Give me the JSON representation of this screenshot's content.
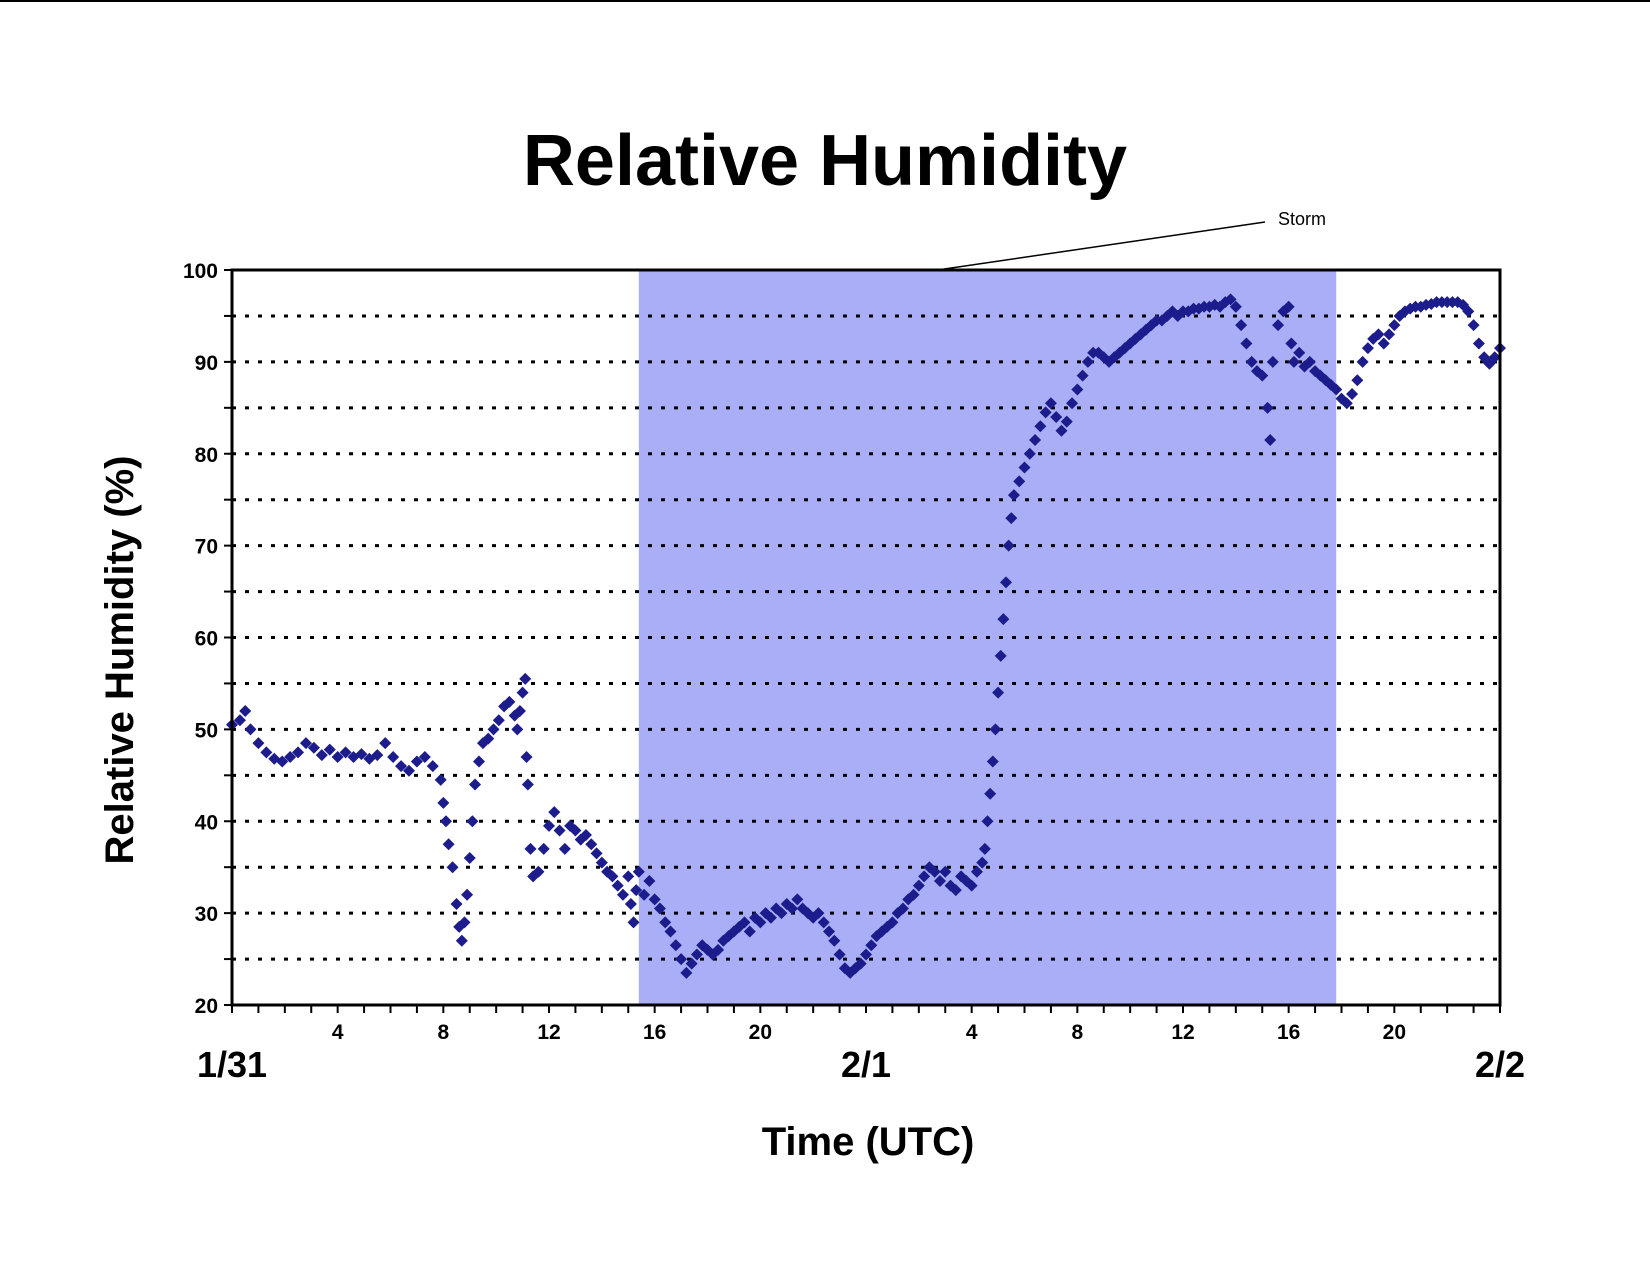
{
  "chart_data": {
    "type": "scatter",
    "title": "Relative Humidity",
    "xlabel": "Time (UTC)",
    "ylabel": "Relative Humidity (%)",
    "ylim": [
      20,
      100
    ],
    "yticks": [
      "20",
      "30",
      "40",
      "50",
      "60",
      "70",
      "80",
      "90",
      "100"
    ],
    "x_unit": "hours after 1/31 00 UTC",
    "xlim": [
      0,
      48
    ],
    "hour_ticks": [
      {
        "hour": 4,
        "label": "4"
      },
      {
        "hour": 8,
        "label": "8"
      },
      {
        "hour": 12,
        "label": "12"
      },
      {
        "hour": 16,
        "label": "16"
      },
      {
        "hour": 20,
        "label": "20"
      },
      {
        "hour": 28,
        "label": "4"
      },
      {
        "hour": 32,
        "label": "8"
      },
      {
        "hour": 36,
        "label": "12"
      },
      {
        "hour": 40,
        "label": "16"
      },
      {
        "hour": 44,
        "label": "20"
      }
    ],
    "date_labels": [
      {
        "hour": 0,
        "label": "1/31"
      },
      {
        "hour": 24,
        "label": "2/1"
      },
      {
        "hour": 48,
        "label": "2/2"
      }
    ],
    "grid": "dotted horizontal every 5",
    "shaded_region": {
      "label": "Storm",
      "x_start": 15.4,
      "x_end": 41.8,
      "color": "#a9aef7"
    },
    "marker_color": "#1c1c8c",
    "series": [
      {
        "marker": "diamond",
        "points": [
          [
            0.0,
            50.5
          ],
          [
            0.3,
            51.0
          ],
          [
            0.5,
            52.0
          ],
          [
            0.7,
            50.0
          ],
          [
            1.0,
            48.5
          ],
          [
            1.3,
            47.5
          ],
          [
            1.6,
            46.8
          ],
          [
            1.9,
            46.5
          ],
          [
            2.2,
            47.0
          ],
          [
            2.5,
            47.5
          ],
          [
            2.8,
            48.5
          ],
          [
            3.1,
            48.0
          ],
          [
            3.4,
            47.2
          ],
          [
            3.7,
            47.8
          ],
          [
            4.0,
            47.0
          ],
          [
            4.3,
            47.5
          ],
          [
            4.6,
            47.0
          ],
          [
            4.9,
            47.3
          ],
          [
            5.2,
            46.8
          ],
          [
            5.5,
            47.2
          ],
          [
            5.8,
            48.5
          ],
          [
            6.1,
            47.0
          ],
          [
            6.4,
            46.0
          ],
          [
            6.7,
            45.5
          ],
          [
            7.0,
            46.5
          ],
          [
            7.3,
            47.0
          ],
          [
            7.6,
            46.0
          ],
          [
            7.9,
            44.5
          ],
          [
            8.0,
            42.0
          ],
          [
            8.1,
            40.0
          ],
          [
            8.2,
            37.5
          ],
          [
            8.35,
            35.0
          ],
          [
            8.5,
            31.0
          ],
          [
            8.6,
            28.5
          ],
          [
            8.7,
            27.0
          ],
          [
            8.8,
            29.0
          ],
          [
            8.9,
            32.0
          ],
          [
            9.0,
            36.0
          ],
          [
            9.1,
            40.0
          ],
          [
            9.2,
            44.0
          ],
          [
            9.35,
            46.5
          ],
          [
            9.5,
            48.5
          ],
          [
            9.7,
            49.0
          ],
          [
            9.9,
            50.0
          ],
          [
            10.1,
            51.0
          ],
          [
            10.3,
            52.5
          ],
          [
            10.5,
            53.0
          ],
          [
            10.7,
            51.5
          ],
          [
            10.8,
            50.0
          ],
          [
            10.9,
            52.0
          ],
          [
            11.0,
            54.0
          ],
          [
            11.1,
            55.5
          ],
          [
            11.15,
            47.0
          ],
          [
            11.2,
            44.0
          ],
          [
            11.3,
            37.0
          ],
          [
            11.4,
            34.0
          ],
          [
            11.6,
            34.5
          ],
          [
            11.8,
            37.0
          ],
          [
            12.0,
            39.5
          ],
          [
            12.2,
            41.0
          ],
          [
            12.4,
            39.0
          ],
          [
            12.6,
            37.0
          ],
          [
            12.8,
            39.5
          ],
          [
            13.0,
            39.0
          ],
          [
            13.2,
            38.0
          ],
          [
            13.4,
            38.5
          ],
          [
            13.6,
            37.5
          ],
          [
            13.8,
            36.5
          ],
          [
            14.0,
            35.5
          ],
          [
            14.2,
            34.5
          ],
          [
            14.4,
            34.0
          ],
          [
            14.6,
            33.0
          ],
          [
            14.8,
            32.0
          ],
          [
            15.0,
            34.0
          ],
          [
            15.1,
            31.0
          ],
          [
            15.2,
            29.0
          ],
          [
            15.3,
            32.5
          ],
          [
            15.4,
            34.5
          ],
          [
            15.6,
            32.0
          ],
          [
            15.8,
            33.5
          ],
          [
            16.0,
            31.5
          ],
          [
            16.2,
            30.5
          ],
          [
            16.4,
            29.0
          ],
          [
            16.6,
            28.0
          ],
          [
            16.8,
            26.5
          ],
          [
            17.0,
            25.0
          ],
          [
            17.2,
            23.5
          ],
          [
            17.4,
            24.5
          ],
          [
            17.6,
            25.5
          ],
          [
            17.8,
            26.5
          ],
          [
            18.0,
            26.0
          ],
          [
            18.2,
            25.5
          ],
          [
            18.4,
            26.0
          ],
          [
            18.6,
            27.0
          ],
          [
            18.8,
            27.5
          ],
          [
            19.0,
            28.0
          ],
          [
            19.2,
            28.5
          ],
          [
            19.4,
            29.0
          ],
          [
            19.6,
            28.0
          ],
          [
            19.8,
            29.5
          ],
          [
            20.0,
            29.0
          ],
          [
            20.2,
            30.0
          ],
          [
            20.4,
            29.5
          ],
          [
            20.6,
            30.5
          ],
          [
            20.8,
            30.0
          ],
          [
            21.0,
            31.0
          ],
          [
            21.2,
            30.5
          ],
          [
            21.4,
            31.5
          ],
          [
            21.6,
            30.5
          ],
          [
            21.8,
            30.0
          ],
          [
            22.0,
            29.5
          ],
          [
            22.2,
            30.0
          ],
          [
            22.4,
            29.0
          ],
          [
            22.6,
            28.0
          ],
          [
            22.8,
            27.0
          ],
          [
            23.0,
            25.5
          ],
          [
            23.2,
            24.0
          ],
          [
            23.4,
            23.5
          ],
          [
            23.6,
            24.0
          ],
          [
            23.8,
            24.5
          ],
          [
            24.0,
            25.5
          ],
          [
            24.2,
            26.5
          ],
          [
            24.4,
            27.5
          ],
          [
            24.6,
            28.0
          ],
          [
            24.8,
            28.5
          ],
          [
            25.0,
            29.0
          ],
          [
            25.2,
            30.0
          ],
          [
            25.4,
            30.5
          ],
          [
            25.6,
            31.5
          ],
          [
            25.8,
            32.0
          ],
          [
            26.0,
            33.0
          ],
          [
            26.2,
            34.0
          ],
          [
            26.4,
            35.0
          ],
          [
            26.6,
            34.5
          ],
          [
            26.8,
            33.5
          ],
          [
            27.0,
            34.5
          ],
          [
            27.2,
            33.0
          ],
          [
            27.4,
            32.5
          ],
          [
            27.6,
            34.0
          ],
          [
            27.8,
            33.5
          ],
          [
            28.0,
            33.0
          ],
          [
            28.2,
            34.5
          ],
          [
            28.4,
            35.5
          ],
          [
            28.5,
            37.0
          ],
          [
            28.6,
            40.0
          ],
          [
            28.7,
            43.0
          ],
          [
            28.8,
            46.5
          ],
          [
            28.9,
            50.0
          ],
          [
            29.0,
            54.0
          ],
          [
            29.1,
            58.0
          ],
          [
            29.2,
            62.0
          ],
          [
            29.3,
            66.0
          ],
          [
            29.4,
            70.0
          ],
          [
            29.5,
            73.0
          ],
          [
            29.6,
            75.5
          ],
          [
            29.8,
            77.0
          ],
          [
            30.0,
            78.5
          ],
          [
            30.2,
            80.0
          ],
          [
            30.4,
            81.5
          ],
          [
            30.6,
            83.0
          ],
          [
            30.8,
            84.5
          ],
          [
            31.0,
            85.5
          ],
          [
            31.2,
            84.0
          ],
          [
            31.4,
            82.5
          ],
          [
            31.6,
            83.5
          ],
          [
            31.8,
            85.5
          ],
          [
            32.0,
            87.0
          ],
          [
            32.2,
            88.5
          ],
          [
            32.4,
            90.0
          ],
          [
            32.6,
            91.0
          ],
          [
            32.8,
            91.0
          ],
          [
            33.0,
            90.5
          ],
          [
            33.2,
            90.0
          ],
          [
            33.4,
            90.5
          ],
          [
            33.6,
            91.0
          ],
          [
            33.8,
            91.5
          ],
          [
            34.0,
            92.0
          ],
          [
            34.2,
            92.5
          ],
          [
            34.4,
            93.0
          ],
          [
            34.6,
            93.5
          ],
          [
            34.8,
            94.0
          ],
          [
            35.0,
            94.5
          ],
          [
            35.2,
            94.5
          ],
          [
            35.4,
            95.0
          ],
          [
            35.6,
            95.5
          ],
          [
            35.8,
            95.0
          ],
          [
            36.0,
            95.5
          ],
          [
            36.2,
            95.5
          ],
          [
            36.4,
            95.8
          ],
          [
            36.6,
            95.8
          ],
          [
            36.8,
            96.0
          ],
          [
            37.0,
            96.0
          ],
          [
            37.2,
            96.2
          ],
          [
            37.4,
            96.0
          ],
          [
            37.6,
            96.5
          ],
          [
            37.8,
            96.8
          ],
          [
            38.0,
            96.0
          ],
          [
            38.2,
            94.0
          ],
          [
            38.4,
            92.0
          ],
          [
            38.6,
            90.0
          ],
          [
            38.8,
            89.0
          ],
          [
            39.0,
            88.5
          ],
          [
            39.2,
            85.0
          ],
          [
            39.3,
            81.5
          ],
          [
            39.4,
            90.0
          ],
          [
            39.6,
            94.0
          ],
          [
            39.8,
            95.5
          ],
          [
            40.0,
            96.0
          ],
          [
            40.1,
            92.0
          ],
          [
            40.2,
            90.0
          ],
          [
            40.4,
            91.0
          ],
          [
            40.6,
            89.5
          ],
          [
            40.8,
            90.0
          ],
          [
            41.0,
            89.0
          ],
          [
            41.2,
            88.5
          ],
          [
            41.4,
            88.0
          ],
          [
            41.6,
            87.5
          ],
          [
            41.8,
            87.0
          ],
          [
            42.0,
            86.0
          ],
          [
            42.2,
            85.5
          ],
          [
            42.4,
            86.5
          ],
          [
            42.6,
            88.0
          ],
          [
            42.8,
            90.0
          ],
          [
            43.0,
            91.5
          ],
          [
            43.2,
            92.5
          ],
          [
            43.4,
            93.0
          ],
          [
            43.6,
            92.0
          ],
          [
            43.8,
            93.0
          ],
          [
            44.0,
            94.0
          ],
          [
            44.2,
            95.0
          ],
          [
            44.4,
            95.5
          ],
          [
            44.6,
            95.8
          ],
          [
            44.8,
            96.0
          ],
          [
            45.0,
            96.0
          ],
          [
            45.2,
            96.2
          ],
          [
            45.4,
            96.3
          ],
          [
            45.6,
            96.5
          ],
          [
            45.8,
            96.5
          ],
          [
            46.0,
            96.5
          ],
          [
            46.2,
            96.5
          ],
          [
            46.4,
            96.5
          ],
          [
            46.6,
            96.2
          ],
          [
            46.8,
            95.5
          ],
          [
            47.0,
            94.0
          ],
          [
            47.2,
            92.0
          ],
          [
            47.4,
            90.5
          ],
          [
            47.6,
            89.8
          ],
          [
            47.8,
            90.5
          ],
          [
            48.0,
            91.5
          ]
        ]
      }
    ]
  },
  "annotation": {
    "storm_label": "Storm"
  }
}
